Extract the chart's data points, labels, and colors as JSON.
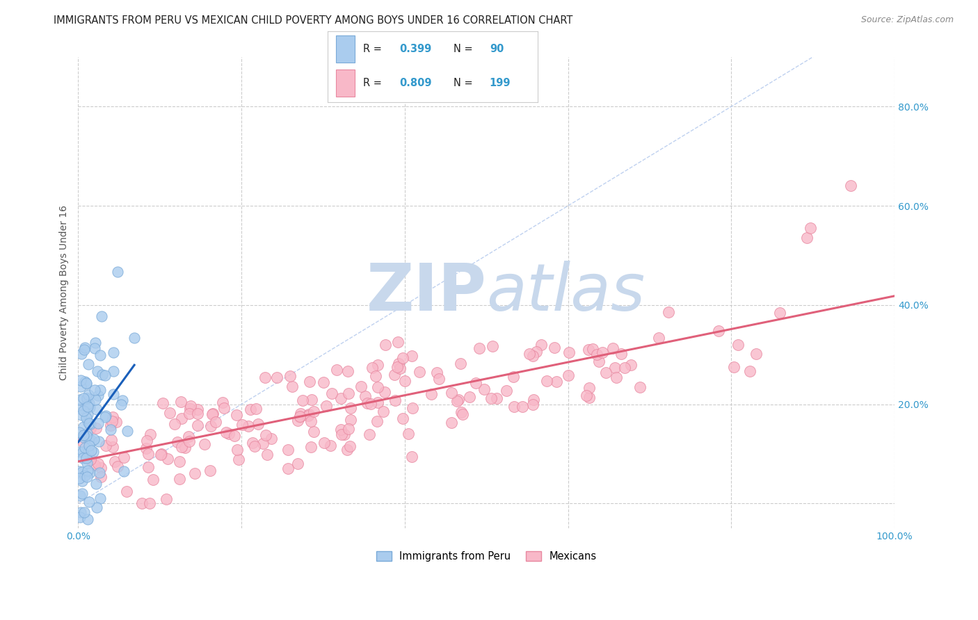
{
  "title": "IMMIGRANTS FROM PERU VS MEXICAN CHILD POVERTY AMONG BOYS UNDER 16 CORRELATION CHART",
  "source": "Source: ZipAtlas.com",
  "ylabel": "Child Poverty Among Boys Under 16",
  "xlim": [
    0,
    1.0
  ],
  "ylim": [
    -0.05,
    0.9
  ],
  "xticks": [
    0.0,
    0.2,
    0.4,
    0.6,
    0.8,
    1.0
  ],
  "xticklabels": [
    "0.0%",
    "",
    "",
    "",
    "",
    "100.0%"
  ],
  "ytick_positions": [
    0.0,
    0.2,
    0.4,
    0.6,
    0.8
  ],
  "yticklabels": [
    "",
    "20.0%",
    "40.0%",
    "60.0%",
    "80.0%"
  ],
  "peru_R": 0.399,
  "peru_N": 90,
  "mexican_R": 0.809,
  "mexican_N": 199,
  "peru_color": "#aaccee",
  "peru_edge": "#7aaad8",
  "peru_line_color": "#1a5fba",
  "mexican_color": "#f8b8c8",
  "mexican_edge": "#e888a0",
  "mexican_line_color": "#e0607a",
  "diagonal_color": "#b8ccee",
  "watermark_zip_color": "#c8d8ec",
  "watermark_atlas_color": "#c8d8ec",
  "legend_peru_color": "#aaccee",
  "legend_mexican_color": "#f8b8c8",
  "background_color": "#ffffff",
  "grid_color": "#cccccc",
  "title_color": "#222222",
  "axis_label_color": "#555555",
  "tick_label_color": "#3399cc",
  "source_color": "#888888",
  "legend_text_color": "#222222",
  "seed": 7
}
